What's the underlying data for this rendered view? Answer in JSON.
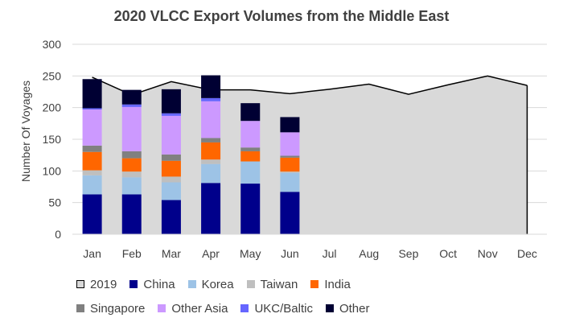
{
  "chart_data": {
    "type": "bar",
    "title": "2020 VLCC Export Volumes from the Middle East",
    "ylabel": "Number Of Voyages",
    "xlabel": "",
    "ylim": [
      0,
      300
    ],
    "yticks": [
      0,
      50,
      100,
      150,
      200,
      250,
      300
    ],
    "grid": true,
    "legend_position": "bottom",
    "categories": [
      "Jan",
      "Feb",
      "Mar",
      "Apr",
      "May",
      "Jun",
      "Jul",
      "Aug",
      "Sep",
      "Oct",
      "Nov",
      "Dec"
    ],
    "area_series": {
      "name": "2019",
      "color": "#d9d9d9",
      "values": [
        248,
        220,
        241,
        228,
        228,
        222,
        229,
        237,
        221,
        236,
        250,
        235
      ]
    },
    "stacked_series": [
      {
        "name": "China",
        "color": "#00008b",
        "values": [
          63,
          63,
          54,
          81,
          80,
          67
        ]
      },
      {
        "name": "Korea",
        "color": "#9dc3e6",
        "values": [
          30,
          27,
          28,
          30,
          35,
          30
        ]
      },
      {
        "name": "Taiwan",
        "color": "#bfbfbf",
        "values": [
          8,
          9,
          9,
          7,
          0,
          2
        ]
      },
      {
        "name": "India",
        "color": "#ff6600",
        "values": [
          29,
          21,
          25,
          27,
          16,
          22
        ]
      },
      {
        "name": "Singapore",
        "color": "#808080",
        "values": [
          10,
          11,
          10,
          7,
          6,
          3
        ]
      },
      {
        "name": "Other Asia",
        "color": "#cc99ff",
        "values": [
          57,
          70,
          61,
          58,
          42,
          37
        ]
      },
      {
        "name": "UKC/Baltic",
        "color": "#6666ff",
        "values": [
          2,
          4,
          4,
          5,
          0,
          0
        ]
      },
      {
        "name": "Other",
        "color": "#000033",
        "values": [
          46,
          23,
          38,
          36,
          28,
          24
        ]
      }
    ],
    "legend_rows": [
      [
        "2019",
        "China",
        "Korea",
        "Taiwan",
        "India"
      ],
      [
        "Singapore",
        "Other Asia",
        "UKC/Baltic",
        "Other"
      ]
    ]
  }
}
